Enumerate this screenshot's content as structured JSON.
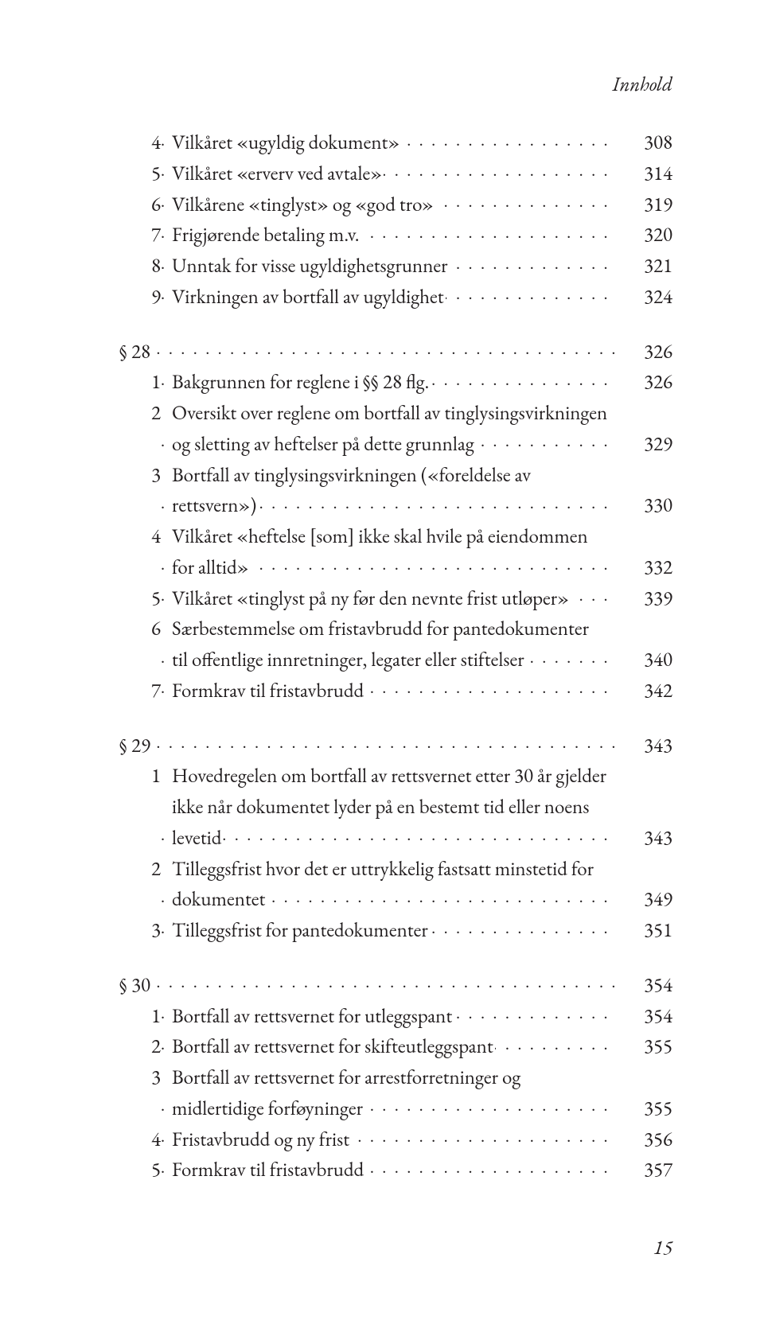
{
  "header": "Innhold",
  "footer_page": "15",
  "colors": {
    "text": "#231f20",
    "background": "#ffffff"
  },
  "typography": {
    "body_fontsize_pt": 19,
    "header_fontsize_pt": 19,
    "font_family": "Garamond serif"
  },
  "sections": [
    {
      "title": null,
      "items": [
        {
          "num": "4",
          "lines": [
            "Vilkåret «ugyldig dokument»"
          ],
          "page": "308"
        },
        {
          "num": "5",
          "lines": [
            "Vilkåret «erverv ved avtale»"
          ],
          "page": "314"
        },
        {
          "num": "6",
          "lines": [
            "Vilkårene «tinglyst» og «god tro»"
          ],
          "page": "319"
        },
        {
          "num": "7",
          "lines": [
            "Frigjørende betaling m.v."
          ],
          "page": "320"
        },
        {
          "num": "8",
          "lines": [
            "Unntak for visse ugyldighetsgrunner"
          ],
          "page": "321"
        },
        {
          "num": "9",
          "lines": [
            "Virkningen av bortfall av ugyldighet"
          ],
          "page": "324"
        }
      ]
    },
    {
      "title": "§ 28",
      "title_page": "326",
      "items": [
        {
          "num": "1",
          "lines": [
            "Bakgrunnen for reglene i §§ 28 flg."
          ],
          "page": "326"
        },
        {
          "num": "2",
          "lines": [
            "Oversikt over reglene om bortfall av tinglysingsvirkningen",
            "og sletting av heftelser på dette grunnlag"
          ],
          "page": "329"
        },
        {
          "num": "3",
          "lines": [
            "Bortfall av tinglysingsvirkningen («foreldelse av",
            "rettsvern»)"
          ],
          "page": "330"
        },
        {
          "num": "4",
          "lines": [
            "Vilkåret «heftelse [som] ikke skal hvile på eiendommen",
            "for alltid»"
          ],
          "page": "332"
        },
        {
          "num": "5",
          "lines": [
            "Vilkåret «tinglyst på ny før den nevnte frist utløper»"
          ],
          "page": "339"
        },
        {
          "num": "6",
          "lines": [
            "Særbestemmelse om fristavbrudd for pantedokumenter",
            "til offentlige innretninger, legater eller stiftelser"
          ],
          "page": "340"
        },
        {
          "num": "7",
          "lines": [
            "Formkrav til fristavbrudd"
          ],
          "page": "342"
        }
      ]
    },
    {
      "title": "§ 29",
      "title_page": "343",
      "items": [
        {
          "num": "1",
          "lines": [
            "Hovedregelen om bortfall av rettsvernet etter 30 år gjelder",
            "ikke når dokumentet lyder på en bestemt tid eller noens",
            "levetid"
          ],
          "page": "343"
        },
        {
          "num": "2",
          "lines": [
            "Tilleggsfrist hvor det er uttrykkelig fastsatt minstetid for",
            "dokumentet"
          ],
          "page": "349"
        },
        {
          "num": "3",
          "lines": [
            "Tilleggsfrist for pantedokumenter"
          ],
          "page": "351"
        }
      ]
    },
    {
      "title": "§ 30",
      "title_page": "354",
      "items": [
        {
          "num": "1",
          "lines": [
            "Bortfall av rettsvernet for utleggspant"
          ],
          "page": "354"
        },
        {
          "num": "2",
          "lines": [
            "Bortfall av rettsvernet for skifteutleggspant"
          ],
          "page": "355"
        },
        {
          "num": "3",
          "lines": [
            "Bortfall av rettsvernet for arrestforretninger og",
            "midlertidige forføyninger"
          ],
          "page": "355"
        },
        {
          "num": "4",
          "lines": [
            "Fristavbrudd og ny frist"
          ],
          "page": "356"
        },
        {
          "num": "5",
          "lines": [
            "Formkrav til fristavbrudd"
          ],
          "page": "357"
        }
      ]
    }
  ]
}
